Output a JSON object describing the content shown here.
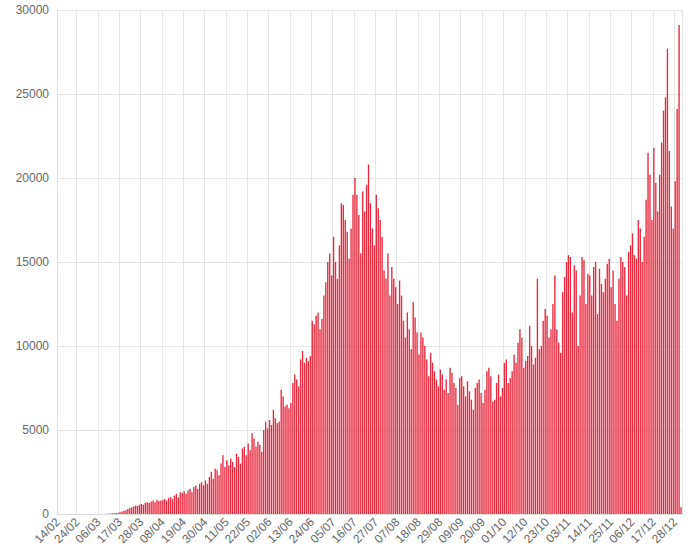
{
  "chart_data": {
    "type": "bar",
    "color": "#e8283d",
    "grid": true,
    "ylim": [
      0,
      30000
    ],
    "yticks": [
      0,
      5000,
      10000,
      15000,
      20000,
      25000,
      30000
    ],
    "categories": [
      "14/02",
      null,
      null,
      null,
      null,
      null,
      null,
      null,
      null,
      null,
      "24/02",
      null,
      null,
      null,
      null,
      null,
      null,
      null,
      null,
      null,
      null,
      "06/03",
      null,
      null,
      null,
      null,
      null,
      null,
      null,
      null,
      null,
      null,
      "17/03",
      null,
      null,
      null,
      null,
      null,
      null,
      null,
      null,
      null,
      null,
      "28/03",
      null,
      null,
      null,
      null,
      null,
      null,
      null,
      null,
      null,
      null,
      "08/04",
      null,
      null,
      null,
      null,
      null,
      null,
      null,
      null,
      null,
      null,
      "19/04",
      null,
      null,
      null,
      null,
      null,
      null,
      null,
      null,
      null,
      null,
      "30/04",
      null,
      null,
      null,
      null,
      null,
      null,
      null,
      null,
      null,
      null,
      "11/05",
      null,
      null,
      null,
      null,
      null,
      null,
      null,
      null,
      null,
      null,
      "22/05",
      null,
      null,
      null,
      null,
      null,
      null,
      null,
      null,
      null,
      null,
      "02/06",
      null,
      null,
      null,
      null,
      null,
      null,
      null,
      null,
      null,
      null,
      "13/06",
      null,
      null,
      null,
      null,
      null,
      null,
      null,
      null,
      null,
      null,
      "24/06",
      null,
      null,
      null,
      null,
      null,
      null,
      null,
      null,
      null,
      null,
      "05/07",
      null,
      null,
      null,
      null,
      null,
      null,
      null,
      null,
      null,
      null,
      "16/07",
      null,
      null,
      null,
      null,
      null,
      null,
      null,
      null,
      null,
      null,
      "27/07",
      null,
      null,
      null,
      null,
      null,
      null,
      null,
      null,
      null,
      null,
      "07/08",
      null,
      null,
      null,
      null,
      null,
      null,
      null,
      null,
      null,
      null,
      "18/08",
      null,
      null,
      null,
      null,
      null,
      null,
      null,
      null,
      null,
      null,
      "29/08",
      null,
      null,
      null,
      null,
      null,
      null,
      null,
      null,
      null,
      null,
      "09/09",
      null,
      null,
      null,
      null,
      null,
      null,
      null,
      null,
      null,
      null,
      "20/09",
      null,
      null,
      null,
      null,
      null,
      null,
      null,
      null,
      null,
      null,
      "01/10",
      null,
      null,
      null,
      null,
      null,
      null,
      null,
      null,
      null,
      null,
      "12/10",
      null,
      null,
      null,
      null,
      null,
      null,
      null,
      null,
      null,
      null,
      "23/10",
      null,
      null,
      null,
      null,
      null,
      null,
      null,
      null,
      null,
      null,
      "03/11",
      null,
      null,
      null,
      null,
      null,
      null,
      null,
      null,
      null,
      null,
      "14/11",
      null,
      null,
      null,
      null,
      null,
      null,
      null,
      null,
      null,
      null,
      "25/11",
      null,
      null,
      null,
      null,
      null,
      null,
      null,
      null,
      null,
      null,
      "06/12",
      null,
      null,
      null,
      null,
      null,
      null,
      null,
      null,
      null,
      null,
      "17/12",
      null,
      null,
      null,
      null,
      null,
      null,
      null,
      null,
      null,
      null,
      "28/12",
      null,
      null,
      null
    ],
    "values": [
      0,
      0,
      0,
      0,
      0,
      0,
      0,
      0,
      0,
      0,
      0,
      0,
      0,
      0,
      0,
      0,
      0,
      0,
      0,
      0,
      1,
      2,
      3,
      5,
      8,
      12,
      20,
      30,
      40,
      50,
      60,
      80,
      100,
      150,
      200,
      220,
      300,
      350,
      400,
      450,
      500,
      480,
      550,
      600,
      550,
      650,
      700,
      650,
      750,
      800,
      700,
      850,
      780,
      800,
      850,
      900,
      800,
      950,
      1000,
      900,
      1100,
      1200,
      1000,
      1300,
      1250,
      1350,
      1200,
      1400,
      1500,
      1300,
      1600,
      1700,
      1500,
      1800,
      1900,
      1700,
      2000,
      1800,
      2200,
      2500,
      2100,
      2700,
      2600,
      2300,
      3000,
      3500,
      2800,
      3200,
      2900,
      3300,
      3100,
      2800,
      3600,
      3400,
      3000,
      3900,
      4000,
      3500,
      4200,
      3800,
      4800,
      4500,
      4000,
      4300,
      4100,
      3700,
      5000,
      5500,
      5100,
      5600,
      5300,
      6200,
      5700,
      5400,
      5500,
      7400,
      7000,
      6400,
      6500,
      6300,
      6600,
      7800,
      8300,
      8000,
      7600,
      9200,
      9700,
      9000,
      9300,
      9100,
      9400,
      11500,
      11300,
      11800,
      12000,
      11000,
      11600,
      13000,
      13800,
      15000,
      15500,
      14200,
      16500,
      15000,
      14000,
      16000,
      18500,
      18400,
      17500,
      16800,
      15200,
      17000,
      19000,
      20000,
      19000,
      17800,
      15500,
      19200,
      18000,
      19600,
      20800,
      18500,
      17000,
      16000,
      19000,
      18200,
      17500,
      16500,
      14500,
      14000,
      15500,
      13000,
      14700,
      14000,
      13500,
      12500,
      13900,
      13000,
      11500,
      10500,
      12000,
      11000,
      9800,
      12600,
      11700,
      10800,
      9500,
      10800,
      10500,
      10000,
      9200,
      8200,
      9600,
      9000,
      8500,
      8000,
      7600,
      8600,
      8300,
      7400,
      8000,
      7200,
      8700,
      8400,
      7800,
      7500,
      6500,
      8100,
      8200,
      7600,
      7000,
      7900,
      7300,
      6800,
      6200,
      7500,
      7800,
      8000,
      7200,
      6600,
      7400,
      8500,
      8700,
      8200,
      6700,
      6800,
      7800,
      8300,
      7000,
      7500,
      9000,
      9200,
      7800,
      8100,
      8500,
      9500,
      9000,
      10200,
      11000,
      10500,
      8700,
      9100,
      9400,
      11200,
      10000,
      8900,
      9300,
      14000,
      9800,
      10000,
      11500,
      12200,
      11800,
      10500,
      11000,
      12500,
      14200,
      11000,
      10200,
      9600,
      13200,
      14100,
      15000,
      15400,
      15300,
      12000,
      14800,
      14500,
      10000,
      13000,
      15300,
      15100,
      12500,
      14300,
      14200,
      13000,
      14700,
      15000,
      11900,
      14600,
      13700,
      13200,
      14000,
      14900,
      15200,
      13500,
      14500,
      12500,
      11500,
      14000,
      15300,
      15000,
      14700,
      13000,
      15600,
      16000,
      16700,
      15400,
      15200,
      17500,
      17000,
      15000,
      16500,
      18700,
      21500,
      20200,
      17500,
      21800,
      19700,
      18000,
      20200,
      22100,
      24000,
      24800,
      27700,
      21600,
      18300,
      17000,
      19800,
      24100,
      29100,
      400
    ]
  }
}
